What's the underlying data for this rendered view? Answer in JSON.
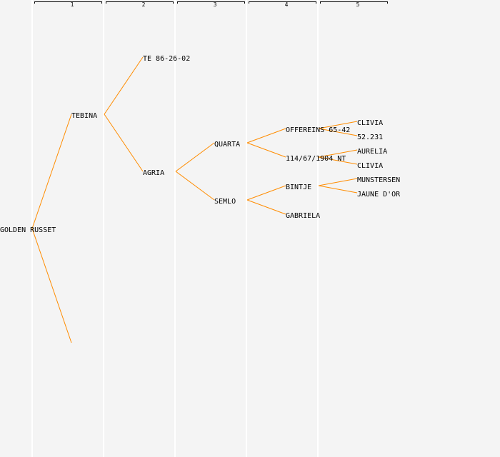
{
  "generations": [
    {
      "id": "gen-1",
      "label": "1"
    },
    {
      "id": "gen-2",
      "label": "2"
    },
    {
      "id": "gen-3",
      "label": "3"
    },
    {
      "id": "gen-4",
      "label": "4"
    },
    {
      "id": "gen-5",
      "label": "5"
    }
  ],
  "nodes": {
    "golden_russet": "GOLDEN RUSSET",
    "tebina": "TEBINA",
    "te_86_26_02": "TE 86-26-02",
    "agria": "AGRIA",
    "quarta": "QUARTA",
    "semlo": "SEMLO",
    "offereins": "OFFEREINS 65-42",
    "nt_114": "114/67/1904 NT",
    "bintje": "BINTJE",
    "gabriela": "GABRIELA",
    "clivia_1": "CLIVIA",
    "n_52231": "52.231",
    "aurelia": "AURELIA",
    "clivia_2": "CLIVIA",
    "munstersen": "MUNSTERSEN",
    "jaune_dor": "JAUNE D'OR"
  },
  "colors": {
    "background": "#f4f4f4",
    "column_divider": "#ffffff",
    "header_bracket": "#000000",
    "link": "#ff8c00",
    "text": "#000000"
  }
}
